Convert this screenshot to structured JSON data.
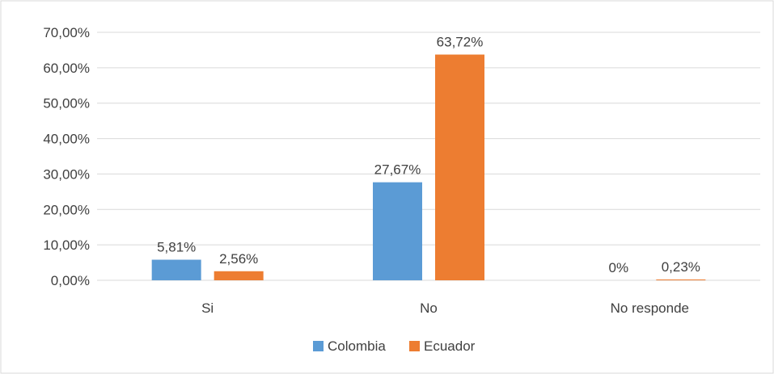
{
  "chart_data": {
    "type": "bar",
    "title": "",
    "xlabel": "",
    "ylabel": "",
    "categories": [
      "Si",
      "No",
      "No responde"
    ],
    "series": [
      {
        "name": "Colombia",
        "values": [
          5.81,
          27.67,
          0
        ],
        "labels": [
          "5,81%",
          "27,67%",
          "0%"
        ],
        "color": "#5B9BD5"
      },
      {
        "name": "Ecuador",
        "values": [
          2.56,
          63.72,
          0.23
        ],
        "labels": [
          "2,56%",
          "63,72%",
          "0,23%"
        ],
        "color": "#ED7D31"
      }
    ],
    "ylim": [
      0,
      70
    ],
    "yticks": [
      0,
      10,
      20,
      30,
      40,
      50,
      60,
      70
    ],
    "ytick_labels": [
      "0,00%",
      "10,00%",
      "20,00%",
      "30,00%",
      "40,00%",
      "50,00%",
      "60,00%",
      "70,00%"
    ],
    "grid": true,
    "legend_position": "bottom",
    "colors": {
      "gridline": "#D9D9D9",
      "text": "#404040",
      "border": "#D9D9D9"
    }
  }
}
